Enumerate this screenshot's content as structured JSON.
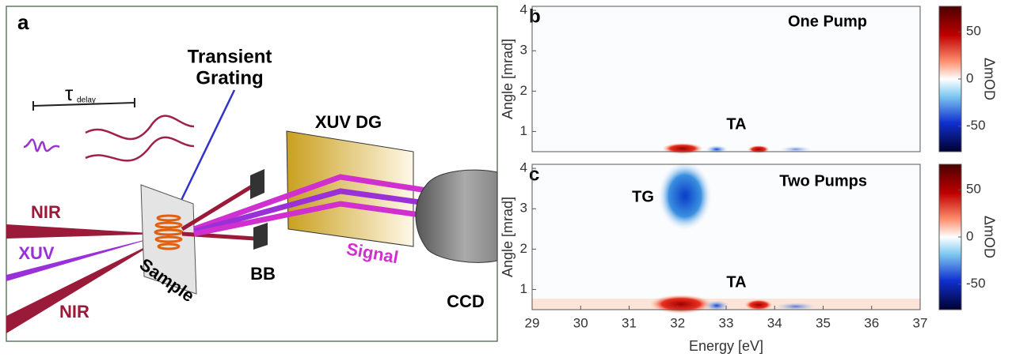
{
  "panel_a": {
    "label": "a",
    "transient_grating": [
      "Transient",
      "Grating"
    ],
    "tau": "τ",
    "tau_subscript": "delay",
    "xuv_dg": "XUV DG",
    "nir_top": "NIR",
    "xuv": "XUV",
    "nir_bottom": "NIR",
    "sample": "Sample",
    "bb": "BB",
    "signal": "Signal",
    "ccd": "CCD"
  },
  "panel_b": {
    "label": "b",
    "title": "One Pump",
    "annotations": [
      "TA"
    ],
    "ylabel": "Angle [mrad]",
    "ylim": [
      0.5,
      4.1
    ],
    "yticks": [
      1,
      2,
      3,
      4
    ],
    "colorbar": {
      "label": "ΔmOD",
      "lim": [
        -77,
        77
      ],
      "ticks": [
        -50,
        0,
        50
      ]
    }
  },
  "panel_c": {
    "label": "c",
    "title": "Two Pumps",
    "annotations": [
      "TG",
      "TA"
    ],
    "ylabel": "Angle [mrad]",
    "ylim": [
      0.5,
      4.1
    ],
    "yticks": [
      1,
      2,
      3,
      4
    ],
    "xlabel": "Energy [eV]",
    "xlim": [
      29,
      37
    ],
    "xticks": [
      29,
      30,
      31,
      32,
      33,
      34,
      35,
      36,
      37
    ],
    "colorbar": {
      "label": "ΔmOD",
      "lim": [
        -77,
        77
      ],
      "ticks": [
        -50,
        0,
        50
      ]
    }
  }
}
